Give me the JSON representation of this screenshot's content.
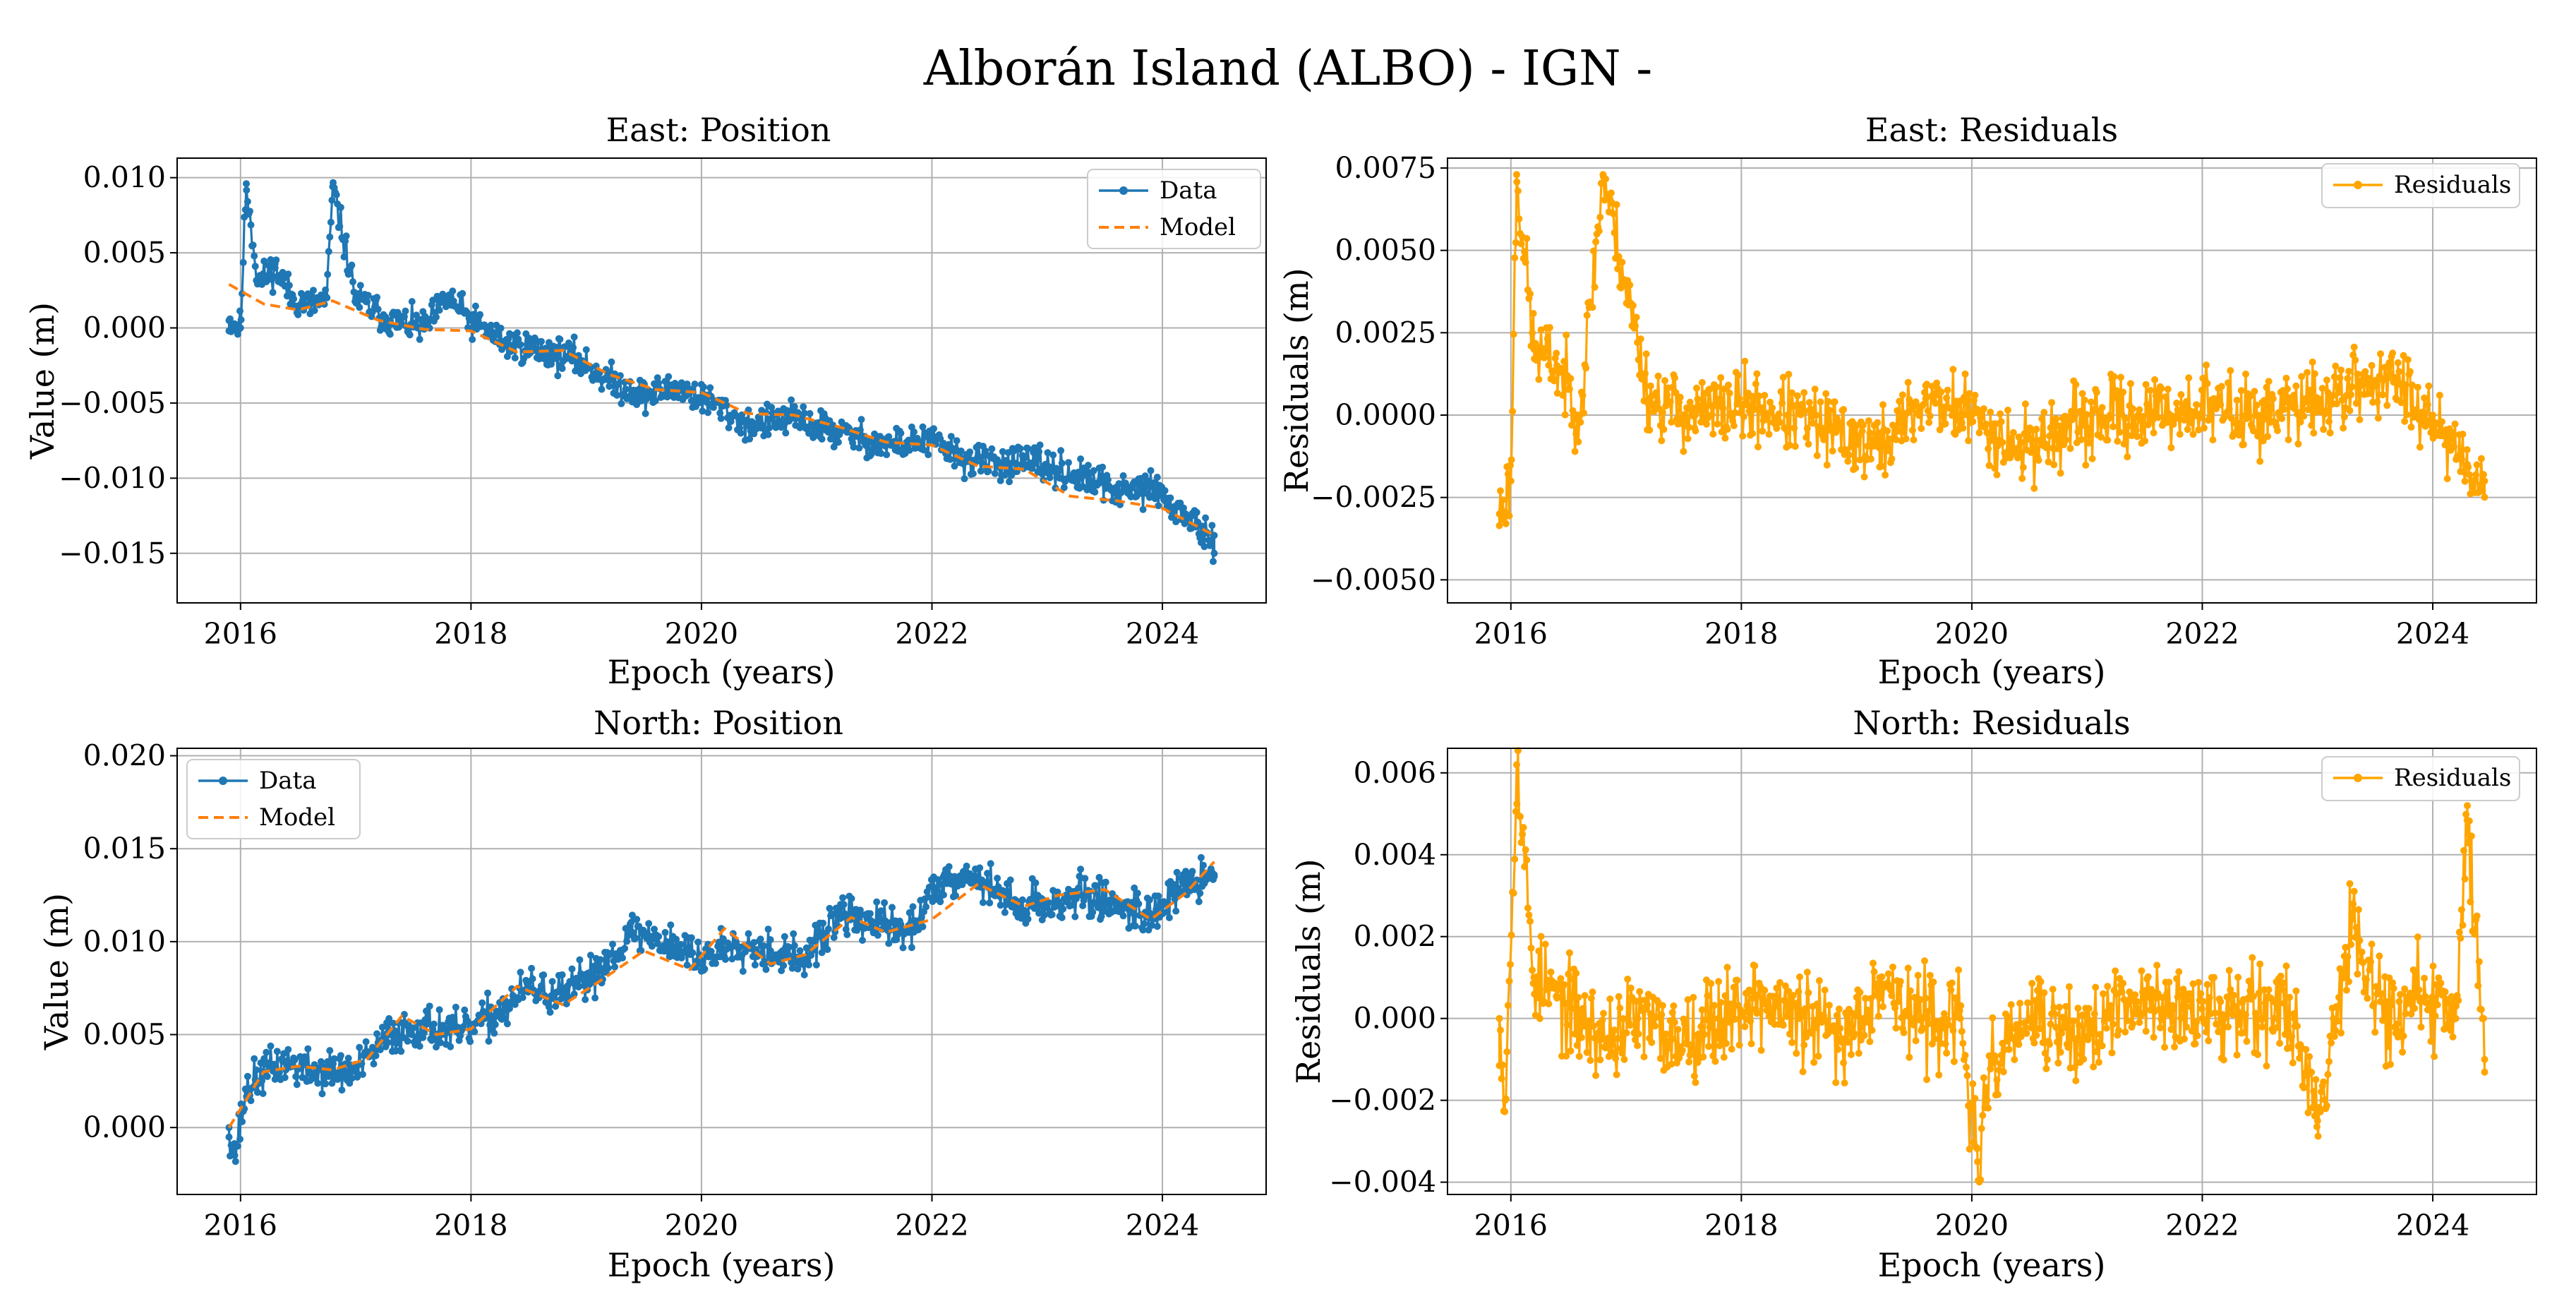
{
  "figure_title": "Alborán Island (ALBO) - IGN -",
  "colors": {
    "data": "#1f77b4",
    "model": "#ff7f0e",
    "residuals": "#ffa500",
    "grid": "#b0b0b0"
  },
  "chart_data": [
    {
      "id": "east-position",
      "type": "line",
      "title": "East: Position",
      "xlabel": "Epoch (years)",
      "ylabel": "Value (m)",
      "xlim": [
        2015.45,
        2024.9
      ],
      "ylim": [
        -0.0183,
        0.0113
      ],
      "xticks": [
        2016,
        2018,
        2020,
        2022,
        2024
      ],
      "xtick_labels": [
        "2016",
        "2018",
        "2020",
        "2022",
        "2024"
      ],
      "yticks": [
        0.01,
        0.005,
        0.0,
        -0.005,
        -0.01,
        -0.015
      ],
      "ytick_labels": [
        "0.010",
        "0.005",
        "0.000",
        "−0.005",
        "−0.010",
        "−0.015"
      ],
      "grid": true,
      "legend": {
        "placement": "upper right",
        "entries": [
          {
            "label": "Data",
            "style": "line-marker",
            "color": "#1f77b4"
          },
          {
            "label": "Model",
            "style": "dashed",
            "color": "#ff7f0e"
          }
        ]
      },
      "series": [
        {
          "name": "Data",
          "style": "line-marker",
          "color": "#1f77b4",
          "noise": 0.0011,
          "seed": 11,
          "x": [
            2015.9,
            2016.0,
            2016.05,
            2016.15,
            2016.3,
            2016.45,
            2016.6,
            2016.75,
            2016.8,
            2017.0,
            2017.3,
            2017.6,
            2017.8,
            2018.0,
            2018.3,
            2018.6,
            2018.9,
            2019.2,
            2019.5,
            2019.8,
            2020.1,
            2020.4,
            2020.8,
            2021.2,
            2021.6,
            2022.0,
            2022.3,
            2022.6,
            2022.9,
            2023.1,
            2023.7,
            2023.9,
            2024.1,
            2024.3,
            2024.45
          ],
          "y": [
            0.0005,
            0.0,
            0.0096,
            0.003,
            0.004,
            0.002,
            0.0015,
            0.002,
            0.0094,
            0.002,
            0.0005,
            0.0,
            0.002,
            0.0005,
            -0.001,
            -0.0015,
            -0.002,
            -0.0035,
            -0.0045,
            -0.004,
            -0.005,
            -0.0065,
            -0.006,
            -0.007,
            -0.0078,
            -0.0075,
            -0.0088,
            -0.009,
            -0.009,
            -0.0095,
            -0.011,
            -0.0105,
            -0.012,
            -0.013,
            -0.015
          ]
        },
        {
          "name": "Model",
          "style": "dashed",
          "color": "#ff7f0e",
          "x": [
            2015.9,
            2016.2,
            2016.5,
            2016.8,
            2017.2,
            2017.6,
            2018.0,
            2018.4,
            2018.8,
            2019.2,
            2019.6,
            2020.0,
            2020.4,
            2020.8,
            2021.2,
            2021.6,
            2022.0,
            2022.4,
            2022.8,
            2023.2,
            2023.6,
            2024.0,
            2024.45
          ],
          "y": [
            0.0029,
            0.0016,
            0.0012,
            0.0018,
            0.0005,
            -0.0001,
            -0.0002,
            -0.0016,
            -0.0015,
            -0.0031,
            -0.0041,
            -0.0043,
            -0.0057,
            -0.0058,
            -0.0066,
            -0.0076,
            -0.0078,
            -0.0092,
            -0.0094,
            -0.0112,
            -0.0115,
            -0.012,
            -0.0138
          ]
        }
      ]
    },
    {
      "id": "east-residuals",
      "type": "line",
      "title": "East: Residuals",
      "xlabel": "Epoch (years)",
      "ylabel": "Residuals (m)",
      "xlim": [
        2015.45,
        2024.9
      ],
      "ylim": [
        -0.0057,
        0.0078
      ],
      "xticks": [
        2016,
        2018,
        2020,
        2022,
        2024
      ],
      "xtick_labels": [
        "2016",
        "2018",
        "2020",
        "2022",
        "2024"
      ],
      "yticks": [
        0.0075,
        0.005,
        0.0025,
        0.0,
        -0.0025,
        -0.005
      ],
      "ytick_labels": [
        "0.0075",
        "0.0050",
        "0.0025",
        "0.0000",
        "−0.0025",
        "−0.0050"
      ],
      "grid": true,
      "legend": {
        "placement": "upper right",
        "entries": [
          {
            "label": "Residuals",
            "style": "line-marker",
            "color": "#ffa500"
          }
        ]
      },
      "series": [
        {
          "name": "Residuals",
          "style": "line-marker",
          "color": "#ffa500",
          "noise": 0.0011,
          "seed": 23,
          "x": [
            2015.9,
            2016.0,
            2016.05,
            2016.2,
            2016.4,
            2016.6,
            2016.8,
            2017.2,
            2017.6,
            2018.0,
            2018.4,
            2018.8,
            2019.2,
            2019.6,
            2020.0,
            2020.4,
            2020.8,
            2021.2,
            2021.6,
            2022.0,
            2022.4,
            2022.8,
            2023.1,
            2023.4,
            2023.7,
            2024.0,
            2024.3,
            2024.45
          ],
          "y": [
            -0.003,
            -0.002,
            0.0073,
            0.002,
            0.0015,
            0.0,
            0.0073,
            0.0005,
            0.0,
            0.0003,
            0.0,
            -0.0005,
            -0.001,
            0.0005,
            0.0,
            -0.001,
            -0.0005,
            0.0,
            0.0,
            0.0003,
            0.0,
            0.0002,
            0.0005,
            0.001,
            0.001,
            0.0,
            -0.0015,
            -0.002
          ]
        }
      ]
    },
    {
      "id": "north-position",
      "type": "line",
      "title": "North: Position",
      "xlabel": "Epoch (years)",
      "ylabel": "Value (m)",
      "xlim": [
        2015.45,
        2024.9
      ],
      "ylim": [
        -0.0036,
        0.0204
      ],
      "xticks": [
        2016,
        2018,
        2020,
        2022,
        2024
      ],
      "xtick_labels": [
        "2016",
        "2018",
        "2020",
        "2022",
        "2024"
      ],
      "yticks": [
        0.02,
        0.015,
        0.01,
        0.005,
        0.0
      ],
      "ytick_labels": [
        "0.020",
        "0.015",
        "0.010",
        "0.005",
        "0.000"
      ],
      "grid": true,
      "legend": {
        "placement": "upper left",
        "entries": [
          {
            "label": "Data",
            "style": "line-marker",
            "color": "#1f77b4"
          },
          {
            "label": "Model",
            "style": "dashed",
            "color": "#ff7f0e"
          }
        ]
      },
      "series": [
        {
          "name": "Data",
          "style": "line-marker",
          "color": "#1f77b4",
          "noise": 0.0011,
          "seed": 37,
          "x": [
            2015.9,
            2015.95,
            2016.05,
            2016.2,
            2016.4,
            2016.6,
            2016.8,
            2017.0,
            2017.3,
            2017.6,
            2017.9,
            2018.2,
            2018.5,
            2018.8,
            2019.1,
            2019.4,
            2019.7,
            2020.0,
            2020.3,
            2020.6,
            2020.9,
            2021.2,
            2021.5,
            2021.8,
            2022.1,
            2022.4,
            2022.7,
            2023.0,
            2023.3,
            2023.6,
            2023.9,
            2024.2,
            2024.45
          ],
          "y": [
            0.0,
            -0.0015,
            0.002,
            0.003,
            0.0035,
            0.003,
            0.003,
            0.003,
            0.005,
            0.0055,
            0.005,
            0.006,
            0.0075,
            0.007,
            0.0085,
            0.0105,
            0.01,
            0.009,
            0.01,
            0.0095,
            0.009,
            0.0115,
            0.011,
            0.0105,
            0.0135,
            0.0135,
            0.012,
            0.012,
            0.0125,
            0.012,
            0.0115,
            0.013,
            0.0135
          ]
        },
        {
          "name": "Model",
          "style": "dashed",
          "color": "#ff7f0e",
          "x": [
            2015.9,
            2016.2,
            2016.5,
            2016.8,
            2017.1,
            2017.4,
            2017.7,
            2018.0,
            2018.4,
            2018.8,
            2019.1,
            2019.5,
            2019.9,
            2020.2,
            2020.6,
            2020.9,
            2021.3,
            2021.6,
            2022.0,
            2022.4,
            2022.8,
            2023.1,
            2023.5,
            2023.9,
            2024.2,
            2024.45
          ],
          "y": [
            0.0,
            0.003,
            0.0033,
            0.0031,
            0.0037,
            0.006,
            0.005,
            0.0053,
            0.0076,
            0.0066,
            0.0078,
            0.0095,
            0.0085,
            0.0107,
            0.0088,
            0.0093,
            0.0113,
            0.0105,
            0.0112,
            0.0131,
            0.0119,
            0.0125,
            0.0128,
            0.0112,
            0.0126,
            0.0143
          ]
        }
      ]
    },
    {
      "id": "north-residuals",
      "type": "line",
      "title": "North: Residuals",
      "xlabel": "Epoch (years)",
      "ylabel": "Residuals (m)",
      "xlim": [
        2015.45,
        2024.9
      ],
      "ylim": [
        -0.0043,
        0.0066
      ],
      "xticks": [
        2016,
        2018,
        2020,
        2022,
        2024
      ],
      "xtick_labels": [
        "2016",
        "2018",
        "2020",
        "2022",
        "2024"
      ],
      "yticks": [
        0.006,
        0.004,
        0.002,
        0.0,
        -0.002,
        -0.004
      ],
      "ytick_labels": [
        "0.006",
        "0.004",
        "0.002",
        "0.000",
        "−0.002",
        "−0.004"
      ],
      "grid": true,
      "legend": {
        "placement": "upper right",
        "entries": [
          {
            "label": "Residuals",
            "style": "line-marker",
            "color": "#ffa500"
          }
        ]
      },
      "series": [
        {
          "name": "Residuals",
          "style": "line-marker",
          "color": "#ffa500",
          "noise": 0.0011,
          "seed": 53,
          "x": [
            2015.9,
            2015.95,
            2016.05,
            2016.2,
            2016.4,
            2016.6,
            2016.8,
            2017.1,
            2017.4,
            2017.8,
            2018.1,
            2018.5,
            2018.9,
            2019.2,
            2019.5,
            2019.9,
            2020.05,
            2020.2,
            2020.5,
            2020.9,
            2021.2,
            2021.6,
            2022.0,
            2022.4,
            2022.8,
            2023.0,
            2023.3,
            2023.6,
            2023.9,
            2024.2,
            2024.3,
            2024.45
          ],
          "y": [
            0.0,
            -0.002,
            0.0062,
            0.001,
            0.0005,
            0.0,
            -0.0005,
            0.0,
            -0.0005,
            0.0,
            0.0005,
            0.0,
            -0.0005,
            0.001,
            0.0,
            0.0,
            -0.0035,
            -0.001,
            0.0,
            -0.0005,
            0.0,
            0.0005,
            0.0,
            0.0005,
            0.0,
            -0.0025,
            0.0025,
            0.0,
            0.0005,
            0.0,
            0.0052,
            -0.001
          ]
        }
      ]
    }
  ]
}
